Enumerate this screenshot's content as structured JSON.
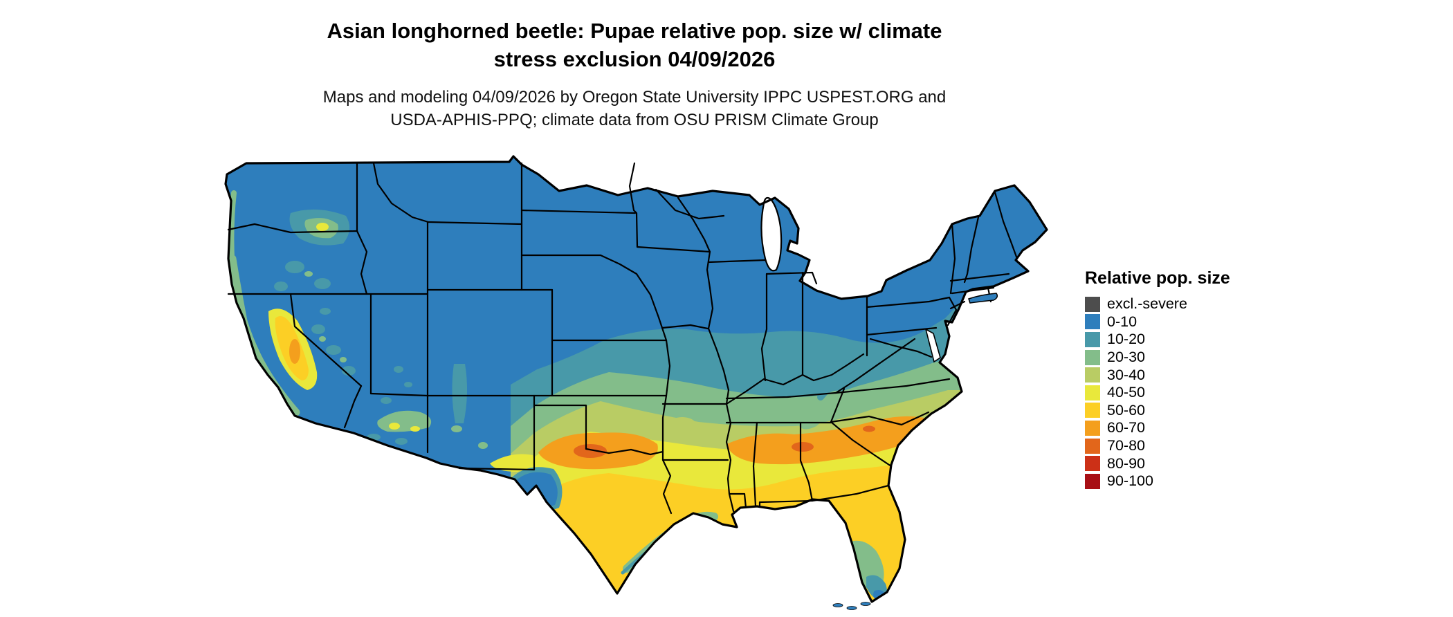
{
  "figure": {
    "title_line1": "Asian longhorned beetle: Pupae relative pop. size w/ climate",
    "title_line2": "stress exclusion 04/09/2026",
    "subtitle_line1": "Maps and modeling 04/09/2026 by Oregon State University IPPC USPEST.ORG and",
    "subtitle_line2": "USDA-APHIS-PPQ; climate data from OSU PRISM Climate Group"
  },
  "legend": {
    "title": "Relative pop. size",
    "items": [
      {
        "label": "excl.-severe",
        "color": "#4d4d4d"
      },
      {
        "label": "0-10",
        "color": "#2e7ebc"
      },
      {
        "label": "10-20",
        "color": "#4899a9"
      },
      {
        "label": "20-30",
        "color": "#83bd8a"
      },
      {
        "label": "30-40",
        "color": "#b9cc64"
      },
      {
        "label": "40-50",
        "color": "#e9e83b"
      },
      {
        "label": "50-60",
        "color": "#fccf25"
      },
      {
        "label": "60-70",
        "color": "#f49f1d"
      },
      {
        "label": "70-80",
        "color": "#e2661b"
      },
      {
        "label": "80-90",
        "color": "#cc3017"
      },
      {
        "label": "90-100",
        "color": "#a80f15"
      }
    ]
  },
  "map": {
    "border_color": "#000000",
    "water_color": "#ffffff",
    "background": "#ffffff"
  }
}
